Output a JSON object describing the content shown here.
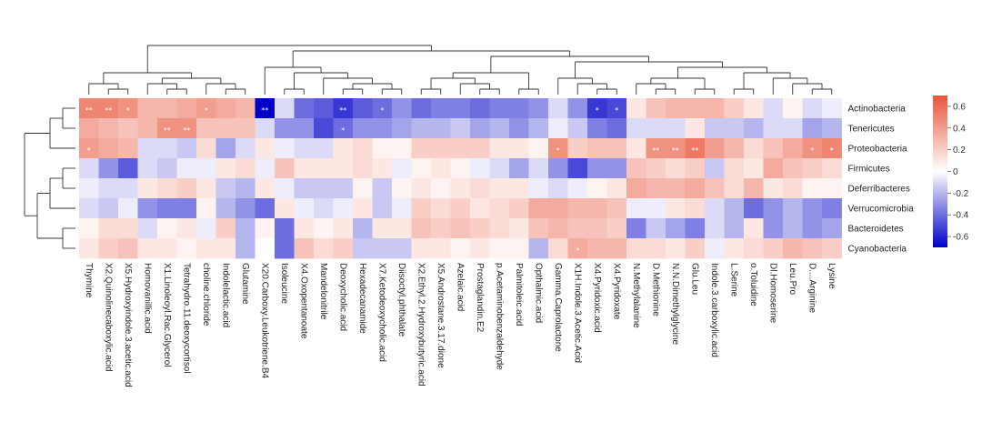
{
  "chart_data": {
    "type": "heatmap",
    "rows": [
      "Actinobacteria",
      "Tenericutes",
      "Proteobacteria",
      "Firmicutes",
      "Deferribacteres",
      "Verrucomicrobia",
      "Bacteroidetes",
      "Cyanobacteria"
    ],
    "columns": [
      "Thymine",
      "X2.Quinolinecaboxylic.acid",
      "X5.Hydroxyindole.3.acetic.acid",
      "Homovanillic.acid",
      "X1.Linoleoyl.Rac.Glycerol",
      "Tetrahydro.11.deoxycortisol",
      "choline.chloride",
      "Indolelactic.acid",
      "Glutamine",
      "X20.Carboxy.Leukotriene.B4",
      "Isoleucine",
      "X4.Oxopentanoate",
      "Mandelonitrile",
      "Deoxycholic.acid",
      "Hexadecanamide",
      "X7.Ketodeoxycholic.acid",
      "Diisoctyl.phthalate",
      "X2.Ethyl.2.Hydroxybutyric.acid",
      "X5.Androstane.3.17.dione",
      "Azelaic.acid",
      "Prostaglandin.E2",
      "p.Acetaminobenzaldehyde",
      "Palmitoleic.acid",
      "Opthalmic.acid",
      "Gamma.Caprolactone",
      "X1H.Indole.3.Acetic.Acid",
      "X4.Pyridoxic.acid",
      "X4.Pyridoxate",
      "N.Methylalanine",
      "D.Methionine",
      "N.N.Dimethylglycine",
      "Glu.Leu",
      "Indole.3.carboxylic.acid",
      "L.Serine",
      "o.Toluidine",
      "Dl.Homoserine",
      "Leu.Pro",
      "D....Arginine",
      "Lysine"
    ],
    "values": [
      [
        0.5,
        0.5,
        0.45,
        0.3,
        0.3,
        0.35,
        0.4,
        0.35,
        0.3,
        -0.75,
        -0.1,
        -0.4,
        -0.45,
        -0.55,
        -0.45,
        -0.4,
        -0.3,
        -0.4,
        -0.35,
        -0.35,
        -0.4,
        -0.35,
        -0.35,
        -0.3,
        -0.1,
        -0.3,
        -0.55,
        -0.5,
        0.1,
        0.25,
        0.3,
        0.3,
        0.3,
        0.2,
        0.1,
        -0.1,
        0.05,
        -0.1,
        -0.05
      ],
      [
        0.35,
        0.3,
        0.25,
        0.3,
        0.45,
        0.45,
        0.25,
        0.25,
        0.25,
        -0.1,
        -0.3,
        -0.3,
        -0.5,
        -0.4,
        -0.3,
        -0.3,
        -0.25,
        -0.2,
        -0.2,
        -0.15,
        -0.25,
        -0.2,
        -0.3,
        -0.2,
        -0.05,
        -0.15,
        -0.35,
        -0.4,
        -0.1,
        -0.1,
        -0.1,
        0.1,
        -0.15,
        -0.15,
        -0.2,
        -0.1,
        -0.1,
        -0.25,
        -0.2
      ],
      [
        0.4,
        0.35,
        0.3,
        -0.1,
        -0.1,
        -0.15,
        0.15,
        -0.25,
        -0.1,
        0.1,
        -0.05,
        -0.1,
        -0.1,
        0.1,
        0.15,
        0.05,
        0.05,
        0.2,
        0.2,
        0.2,
        0.2,
        0.1,
        0.1,
        0.05,
        0.45,
        0.2,
        0.25,
        0.25,
        0.1,
        0.45,
        0.45,
        0.55,
        0.4,
        0.3,
        0.15,
        0.25,
        0.35,
        0.45,
        0.5
      ],
      [
        -0.1,
        -0.3,
        -0.45,
        -0.1,
        -0.15,
        -0.05,
        -0.05,
        0.1,
        0.15,
        -0.05,
        0.25,
        0.1,
        0.1,
        0.1,
        0.15,
        0.1,
        -0.05,
        0.05,
        0.1,
        0.05,
        -0.05,
        -0.1,
        -0.25,
        -0.1,
        -0.3,
        -0.5,
        -0.3,
        -0.3,
        0.25,
        0.2,
        0.15,
        0.2,
        -0.15,
        0.15,
        0.1,
        0.35,
        0.25,
        0.2,
        0.15
      ],
      [
        -0.05,
        -0.1,
        -0.1,
        0.1,
        0.15,
        0.2,
        0.1,
        -0.15,
        -0.2,
        0.1,
        -0.05,
        -0.15,
        -0.15,
        -0.15,
        0.05,
        -0.15,
        0.05,
        0.1,
        0.05,
        0.1,
        0.15,
        0.1,
        0.1,
        -0.05,
        -0.1,
        -0.05,
        0.05,
        0.1,
        0.35,
        0.3,
        0.3,
        0.35,
        0.25,
        0.15,
        0.3,
        0.1,
        0.15,
        0.05,
        0.05
      ],
      [
        -0.1,
        -0.15,
        -0.05,
        -0.3,
        -0.35,
        -0.35,
        0.05,
        -0.2,
        -0.3,
        -0.4,
        0.1,
        -0.05,
        -0.1,
        -0.05,
        0.1,
        -0.15,
        -0.05,
        0.2,
        0.15,
        0.2,
        0.1,
        0.15,
        0.2,
        0.35,
        0.35,
        0.3,
        0.3,
        0.25,
        -0.05,
        -0.05,
        0.1,
        0.15,
        -0.1,
        -0.2,
        -0.4,
        -0.3,
        -0.2,
        -0.3,
        -0.35
      ],
      [
        0.05,
        0.15,
        0.15,
        -0.1,
        0.05,
        0.1,
        -0.05,
        0.2,
        -0.2,
        0.05,
        -0.4,
        0.1,
        0.05,
        0.1,
        -0.2,
        0.1,
        0.1,
        0.25,
        0.2,
        0.25,
        0.2,
        0.15,
        0.1,
        0.25,
        0.3,
        0.25,
        0.25,
        0.2,
        -0.35,
        -0.15,
        -0.25,
        -0.35,
        -0.1,
        -0.2,
        0.1,
        -0.3,
        -0.2,
        -0.3,
        -0.25
      ],
      [
        0.1,
        0.2,
        0.25,
        0.1,
        0.1,
        0.05,
        0.1,
        0.1,
        -0.2,
        0.0,
        -0.4,
        0.25,
        0.15,
        0.2,
        -0.15,
        -0.15,
        -0.15,
        0.1,
        0.1,
        0.05,
        0.1,
        0.05,
        0.05,
        -0.2,
        0.15,
        0.35,
        0.3,
        0.3,
        0.15,
        0.15,
        0.1,
        0.2,
        -0.05,
        0.1,
        0.15,
        0.2,
        0.3,
        0.25,
        0.2
      ]
    ],
    "significance": [
      {
        "row": 0,
        "col": 0,
        "mark": "**"
      },
      {
        "row": 0,
        "col": 1,
        "mark": "**"
      },
      {
        "row": 0,
        "col": 2,
        "mark": "*"
      },
      {
        "row": 0,
        "col": 6,
        "mark": "*"
      },
      {
        "row": 0,
        "col": 9,
        "mark": "**"
      },
      {
        "row": 0,
        "col": 13,
        "mark": "**"
      },
      {
        "row": 0,
        "col": 15,
        "mark": "*"
      },
      {
        "row": 0,
        "col": 26,
        "mark": "*"
      },
      {
        "row": 0,
        "col": 27,
        "mark": "*"
      },
      {
        "row": 1,
        "col": 4,
        "mark": "**"
      },
      {
        "row": 1,
        "col": 5,
        "mark": "**"
      },
      {
        "row": 1,
        "col": 13,
        "mark": "*"
      },
      {
        "row": 2,
        "col": 0,
        "mark": "*"
      },
      {
        "row": 2,
        "col": 24,
        "mark": "*"
      },
      {
        "row": 2,
        "col": 29,
        "mark": "**"
      },
      {
        "row": 2,
        "col": 30,
        "mark": "**"
      },
      {
        "row": 2,
        "col": 31,
        "mark": "**"
      },
      {
        "row": 2,
        "col": 37,
        "mark": "*"
      },
      {
        "row": 2,
        "col": 38,
        "mark": "*"
      },
      {
        "row": 7,
        "col": 25,
        "mark": "*"
      }
    ],
    "color_scale": {
      "range": [
        -0.7,
        0.7
      ],
      "ticks": [
        0.6,
        0.4,
        0.2,
        0,
        -0.2,
        -0.4,
        -0.6
      ],
      "colors": {
        "low": "#0000c8",
        "mid": "#ffffff",
        "high": "#e8553a"
      }
    },
    "title": "",
    "xlabel": "",
    "ylabel": ""
  }
}
